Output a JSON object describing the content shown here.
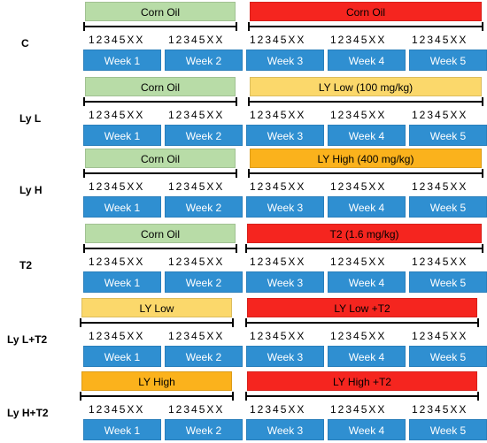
{
  "colors": {
    "corn_oil": "#b8dca7",
    "treatment_red": "#f5251f",
    "ly_low": "#fbd86b",
    "ly_high": "#fbb21c",
    "week_blue": "#2f8fd1"
  },
  "day_sequence": "1 2 3 4 5 X X",
  "week_labels": [
    "Week 1",
    "Week 2",
    "Week 3",
    "Week 4",
    "Week 5"
  ],
  "groups": [
    {
      "label": "C",
      "phase1": {
        "label": "Corn Oil",
        "color": "corn_oil"
      },
      "phase2": {
        "label": "Corn Oil",
        "color": "treatment_red"
      }
    },
    {
      "label": "Ly L",
      "phase1": {
        "label": "Corn Oil",
        "color": "corn_oil"
      },
      "phase2": {
        "label": "LY Low (100 mg/kg)",
        "color": "ly_low"
      }
    },
    {
      "label": "Ly H",
      "phase1": {
        "label": "Corn Oil",
        "color": "corn_oil"
      },
      "phase2": {
        "label": "LY High (400 mg/kg)",
        "color": "ly_high"
      }
    },
    {
      "label": "T2",
      "phase1": {
        "label": "Corn Oil",
        "color": "corn_oil"
      },
      "phase2": {
        "label": "T2 (1.6 mg/kg)",
        "color": "treatment_red"
      }
    },
    {
      "label": "Ly L+T2",
      "phase1": {
        "label": "LY Low",
        "color": "ly_low"
      },
      "phase2": {
        "label": "LY Low +T2",
        "color": "treatment_red"
      }
    },
    {
      "label": "Ly H+T2",
      "phase1": {
        "label": "LY High",
        "color": "ly_high"
      },
      "phase2": {
        "label": "LY High +T2",
        "color": "treatment_red"
      }
    }
  ]
}
